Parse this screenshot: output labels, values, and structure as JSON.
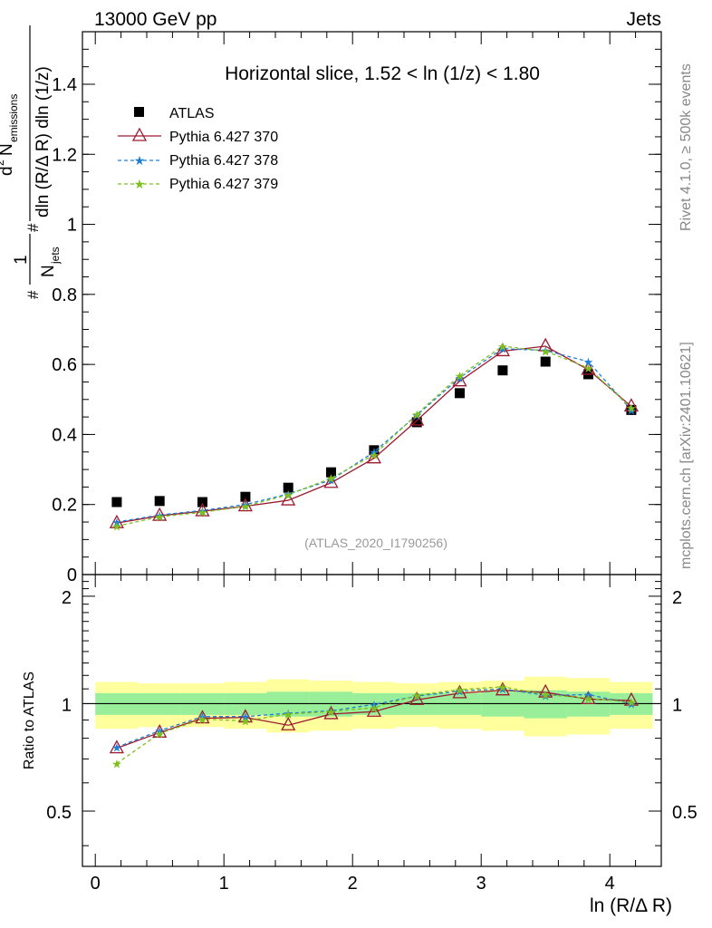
{
  "header": {
    "top_left": "13000 GeV pp",
    "top_right": "Jets"
  },
  "side_labels": {
    "rivet": "Rivet 4.1.0, ≥ 500k events",
    "mcplots": "mcplots.cern.ch [arXiv:2401.10621]"
  },
  "chart_data": [
    {
      "type": "scatter",
      "panel": "main",
      "title": "Horizontal slice, 1.52 < ln (1/z) < 1.80",
      "watermark": "(ATLAS_2020_I1790256)",
      "ylabel": "1/N_jets d²N_emissions / dln(R/ΔR) dln(1/z)",
      "ylabel_parts": {
        "frac1_num": "1",
        "frac1_den": "N",
        "frac1_den_sub": "jets",
        "frac2_num": "d",
        "frac2_num_sup": "2",
        "frac2_num_main": "N",
        "frac2_num_sub": "emissions",
        "frac2_den": "dln (R/Δ R) dln (1/z)"
      },
      "xlim": [
        -0.1,
        4.4
      ],
      "ylim": [
        0,
        1.55
      ],
      "y_ticks": [
        0,
        0.2,
        0.4,
        0.6,
        0.8,
        1,
        1.2,
        1.4
      ],
      "y_tick_labels": [
        "0",
        "0.2",
        "0.4",
        "0.6",
        "0.8",
        "1",
        "1.2",
        "1.4"
      ],
      "x": [
        0.167,
        0.5,
        0.833,
        1.167,
        1.5,
        1.833,
        2.167,
        2.5,
        2.833,
        3.167,
        3.5,
        3.833,
        4.167
      ],
      "series": [
        {
          "name": "ATLAS",
          "style": "square",
          "color": "#000000",
          "values": [
            0.207,
            0.21,
            0.207,
            0.222,
            0.248,
            0.292,
            0.355,
            0.435,
            0.518,
            0.583,
            0.608,
            0.572,
            0.47
          ]
        },
        {
          "name": "Pythia 6.427 370",
          "style": "triangle-solid",
          "color": "#9b1b30",
          "values": [
            0.147,
            0.168,
            0.181,
            0.195,
            0.212,
            0.262,
            0.332,
            0.44,
            0.552,
            0.638,
            0.652,
            0.585,
            0.48
          ]
        },
        {
          "name": "Pythia 6.427 378",
          "style": "star-dashed",
          "color": "#1f7fd6",
          "values": [
            0.15,
            0.17,
            0.183,
            0.2,
            0.23,
            0.27,
            0.35,
            0.455,
            0.562,
            0.645,
            0.64,
            0.608,
            0.47
          ]
        },
        {
          "name": "Pythia 6.427 379",
          "style": "star-dashed",
          "color": "#7ec01d",
          "values": [
            0.138,
            0.165,
            0.178,
            0.195,
            0.228,
            0.275,
            0.342,
            0.458,
            0.568,
            0.652,
            0.638,
            0.59,
            0.476
          ]
        }
      ]
    },
    {
      "type": "scatter",
      "panel": "ratio",
      "xlabel": "ln (R/Δ R)",
      "ylabel": "Ratio to ATLAS",
      "xlim": [
        -0.1,
        4.4
      ],
      "ylim": [
        0.35,
        2.3
      ],
      "x_ticks": [
        0,
        1,
        2,
        3,
        4
      ],
      "x_tick_labels": [
        "0",
        "1",
        "2",
        "3",
        "4"
      ],
      "y_ticks": [
        0.5,
        1,
        2
      ],
      "y_tick_labels": [
        "0.5",
        "1",
        "2"
      ],
      "bin_edges": [
        0,
        0.333,
        0.667,
        1,
        1.333,
        1.667,
        2,
        2.333,
        2.667,
        3,
        3.333,
        3.667,
        4,
        4.333
      ],
      "band_stat_half": [
        0.07,
        0.07,
        0.07,
        0.07,
        0.08,
        0.08,
        0.07,
        0.07,
        0.07,
        0.08,
        0.09,
        0.08,
        0.07
      ],
      "band_total_half": [
        0.15,
        0.14,
        0.14,
        0.15,
        0.17,
        0.16,
        0.15,
        0.14,
        0.15,
        0.16,
        0.19,
        0.18,
        0.15
      ],
      "x": [
        0.167,
        0.5,
        0.833,
        1.167,
        1.5,
        1.833,
        2.167,
        2.5,
        2.833,
        3.167,
        3.5,
        3.833,
        4.167
      ],
      "series": [
        {
          "name": "Pythia 6.427 370",
          "color": "#9b1b30",
          "values": [
            0.75,
            0.83,
            0.91,
            0.915,
            0.87,
            0.935,
            0.95,
            1.025,
            1.07,
            1.09,
            1.075,
            1.03,
            1.02
          ]
        },
        {
          "name": "Pythia 6.427 378",
          "color": "#1f7fd6",
          "values": [
            0.755,
            0.84,
            0.92,
            0.92,
            0.94,
            0.955,
            0.995,
            1.05,
            1.085,
            1.1,
            1.055,
            1.06,
            1.0
          ]
        },
        {
          "name": "Pythia 6.427 379",
          "color": "#7ec01d",
          "values": [
            0.68,
            0.825,
            0.905,
            0.895,
            0.935,
            0.95,
            0.975,
            1.055,
            1.095,
            1.115,
            1.06,
            1.035,
            1.01
          ]
        }
      ]
    }
  ]
}
